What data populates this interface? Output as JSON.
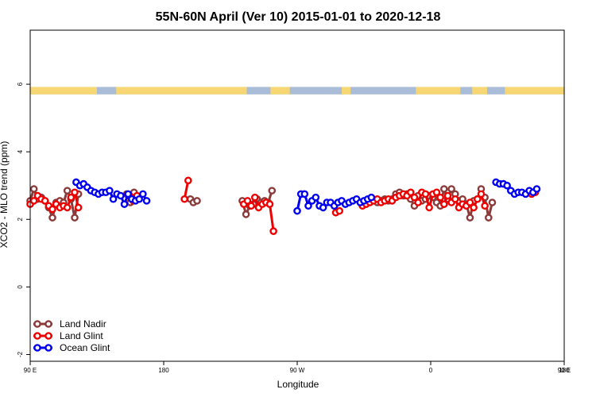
{
  "chart_data": {
    "type": "line",
    "title": "55N-60N April (Ver 10)   2015-01-01 to 2020-12-18",
    "xlabel": "Longitude",
    "ylabel": "XCO2 - MLO trend (ppm)",
    "xlim": [
      90,
      450
    ],
    "ylim": [
      -2.2,
      7.6
    ],
    "x_ticks": [
      {
        "value": 90,
        "label": "90 E"
      },
      {
        "value": 180,
        "label": "180"
      },
      {
        "value": 270,
        "label": "90 W"
      },
      {
        "value": 360,
        "label": "0"
      },
      {
        "value": 450,
        "label": "90 E"
      },
      {
        "value": 540,
        "label": "180"
      }
    ],
    "y_ticks": [
      {
        "value": -2,
        "label": "-2"
      },
      {
        "value": 0,
        "label": "0"
      },
      {
        "value": 2,
        "label": "2"
      },
      {
        "value": 4,
        "label": "4"
      },
      {
        "value": 6,
        "label": "6"
      }
    ],
    "grid": false,
    "legend_position": "bottom-left",
    "land_mask_band": {
      "y_range": [
        5.7,
        5.92
      ],
      "ocean_color": "#a9bcd8",
      "land_color": "#f7d774",
      "land_segments": [
        [
          90,
          135
        ],
        [
          148,
          236
        ],
        [
          252,
          265
        ],
        [
          300,
          306
        ],
        [
          350,
          380
        ],
        [
          388,
          398
        ],
        [
          410,
          450
        ]
      ]
    },
    "series": [
      {
        "name": "Land Nadir",
        "color": "#8b3a3a",
        "segments": [
          [
            [
              90,
              2.55
            ],
            [
              92.5,
              2.9
            ],
            [
              95,
              2.6
            ],
            [
              97.5,
              2.65
            ],
            [
              100,
              2.55
            ],
            [
              102.5,
              2.35
            ],
            [
              105,
              2.05
            ],
            [
              107.5,
              2.5
            ],
            [
              110,
              2.55
            ],
            [
              112.5,
              2.5
            ],
            [
              115,
              2.85
            ],
            [
              117.5,
              2.6
            ],
            [
              120,
              2.05
            ],
            [
              122.5,
              2.75
            ]
          ],
          [
            [
              155,
              2.75
            ],
            [
              157.5,
              2.5
            ],
            [
              160,
              2.8
            ]
          ],
          [
            [
              198,
              2.6
            ],
            [
              200,
              2.5
            ],
            [
              202.5,
              2.55
            ]
          ],
          [
            [
              233,
              2.55
            ],
            [
              235.5,
              2.15
            ],
            [
              238,
              2.4
            ],
            [
              240.5,
              2.45
            ],
            [
              243,
              2.6
            ],
            [
              245.5,
              2.5
            ],
            [
              248,
              2.55
            ],
            [
              250.5,
              2.5
            ],
            [
              253,
              2.85
            ]
          ],
          [
            [
              324,
              2.5
            ],
            [
              326.5,
              2.55
            ],
            [
              329,
              2.6
            ],
            [
              331.5,
              2.55
            ],
            [
              334,
              2.6
            ],
            [
              336.5,
              2.75
            ],
            [
              339,
              2.8
            ],
            [
              341.5,
              2.7
            ],
            [
              344,
              2.75
            ],
            [
              346.5,
              2.6
            ],
            [
              349,
              2.4
            ],
            [
              351.5,
              2.7
            ],
            [
              354,
              2.55
            ],
            [
              356.5,
              2.6
            ],
            [
              359,
              2.7
            ],
            [
              361.5,
              2.65
            ],
            [
              364,
              2.5
            ],
            [
              366.5,
              2.4
            ],
            [
              369,
              2.9
            ],
            [
              371.5,
              2.6
            ],
            [
              374,
              2.9
            ],
            [
              376.5,
              2.75
            ],
            [
              379,
              2.55
            ],
            [
              381.5,
              2.6
            ],
            [
              384,
              2.45
            ],
            [
              386.5,
              2.05
            ],
            [
              389,
              2.55
            ],
            [
              391.5,
              2.6
            ],
            [
              394,
              2.9
            ],
            [
              396.5,
              2.65
            ],
            [
              399,
              2.05
            ],
            [
              401.5,
              2.5
            ]
          ]
        ]
      },
      {
        "name": "Land Glint",
        "color": "#ee0000",
        "segments": [
          [
            [
              90,
              2.45
            ],
            [
              92.5,
              2.55
            ],
            [
              95,
              2.7
            ],
            [
              97.5,
              2.6
            ],
            [
              100,
              2.55
            ],
            [
              102.5,
              2.4
            ],
            [
              105,
              2.3
            ],
            [
              107.5,
              2.45
            ],
            [
              110,
              2.35
            ],
            [
              112.5,
              2.4
            ],
            [
              115,
              2.35
            ],
            [
              117.5,
              2.65
            ],
            [
              120,
              2.8
            ],
            [
              122.5,
              2.35
            ]
          ],
          [
            [
              157,
              2.7
            ],
            [
              159.5,
              2.55
            ],
            [
              162,
              2.7
            ]
          ],
          [
            [
              194,
              2.6
            ],
            [
              196.5,
              3.15
            ]
          ],
          [
            [
              234,
              2.45
            ],
            [
              236.5,
              2.55
            ],
            [
              239,
              2.4
            ],
            [
              241.5,
              2.65
            ],
            [
              244,
              2.35
            ],
            [
              246.5,
              2.45
            ],
            [
              249,
              2.5
            ],
            [
              251.5,
              2.45
            ],
            [
              254,
              1.65
            ]
          ],
          [
            [
              296,
              2.2
            ],
            [
              298.5,
              2.25
            ]
          ],
          [
            [
              314,
              2.4
            ],
            [
              316.5,
              2.45
            ],
            [
              319,
              2.5
            ],
            [
              321.5,
              2.55
            ],
            [
              324,
              2.6
            ],
            [
              326.5,
              2.5
            ],
            [
              329,
              2.55
            ],
            [
              331.5,
              2.6
            ],
            [
              334,
              2.55
            ],
            [
              336.5,
              2.65
            ],
            [
              339,
              2.7
            ],
            [
              341.5,
              2.75
            ],
            [
              344,
              2.7
            ],
            [
              346.5,
              2.8
            ],
            [
              349,
              2.65
            ],
            [
              351.5,
              2.5
            ],
            [
              354,
              2.8
            ],
            [
              356.5,
              2.75
            ],
            [
              359,
              2.35
            ],
            [
              361.5,
              2.75
            ],
            [
              364,
              2.8
            ],
            [
              366.5,
              2.65
            ],
            [
              369,
              2.45
            ],
            [
              371.5,
              2.7
            ],
            [
              374,
              2.5
            ],
            [
              376.5,
              2.6
            ],
            [
              379,
              2.35
            ],
            [
              381.5,
              2.45
            ],
            [
              384,
              2.4
            ],
            [
              386.5,
              2.5
            ],
            [
              389,
              2.35
            ],
            [
              391.5,
              2.6
            ],
            [
              394,
              2.75
            ],
            [
              396.5,
              2.4
            ]
          ],
          [
            [
              428,
              2.75
            ],
            [
              430.5,
              2.8
            ]
          ]
        ]
      },
      {
        "name": "Ocean Glint",
        "color": "#0000ee",
        "segments": [
          [
            [
              121,
              3.1
            ],
            [
              123.5,
              3.0
            ],
            [
              126,
              3.05
            ],
            [
              128.5,
              2.95
            ],
            [
              131,
              2.85
            ],
            [
              133.5,
              2.8
            ],
            [
              136,
              2.75
            ],
            [
              138.5,
              2.8
            ],
            [
              141,
              2.8
            ],
            [
              143.5,
              2.85
            ],
            [
              146,
              2.6
            ],
            [
              148.5,
              2.75
            ],
            [
              151,
              2.7
            ],
            [
              153.5,
              2.45
            ],
            [
              156,
              2.75
            ],
            [
              158.5,
              2.6
            ],
            [
              161,
              2.55
            ],
            [
              163.5,
              2.6
            ],
            [
              166,
              2.75
            ],
            [
              168.5,
              2.55
            ]
          ],
          [
            [
              270,
              2.25
            ],
            [
              272.5,
              2.75
            ],
            [
              275,
              2.75
            ],
            [
              277.5,
              2.4
            ],
            [
              280,
              2.55
            ],
            [
              282.5,
              2.65
            ],
            [
              285,
              2.4
            ],
            [
              287.5,
              2.35
            ],
            [
              290,
              2.5
            ],
            [
              292.5,
              2.5
            ],
            [
              295,
              2.4
            ],
            [
              297.5,
              2.5
            ],
            [
              300,
              2.55
            ],
            [
              302.5,
              2.45
            ],
            [
              305,
              2.5
            ],
            [
              307.5,
              2.55
            ],
            [
              310,
              2.6
            ],
            [
              312.5,
              2.5
            ],
            [
              315,
              2.55
            ],
            [
              317.5,
              2.6
            ],
            [
              320,
              2.65
            ]
          ],
          [
            [
              404,
              3.1
            ],
            [
              406.5,
              3.05
            ],
            [
              409,
              3.05
            ],
            [
              411.5,
              3.0
            ],
            [
              414,
              2.85
            ],
            [
              416.5,
              2.75
            ],
            [
              419,
              2.8
            ],
            [
              421.5,
              2.8
            ],
            [
              424,
              2.75
            ],
            [
              426.5,
              2.85
            ],
            [
              429,
              2.8
            ],
            [
              431.5,
              2.9
            ]
          ]
        ]
      }
    ]
  }
}
